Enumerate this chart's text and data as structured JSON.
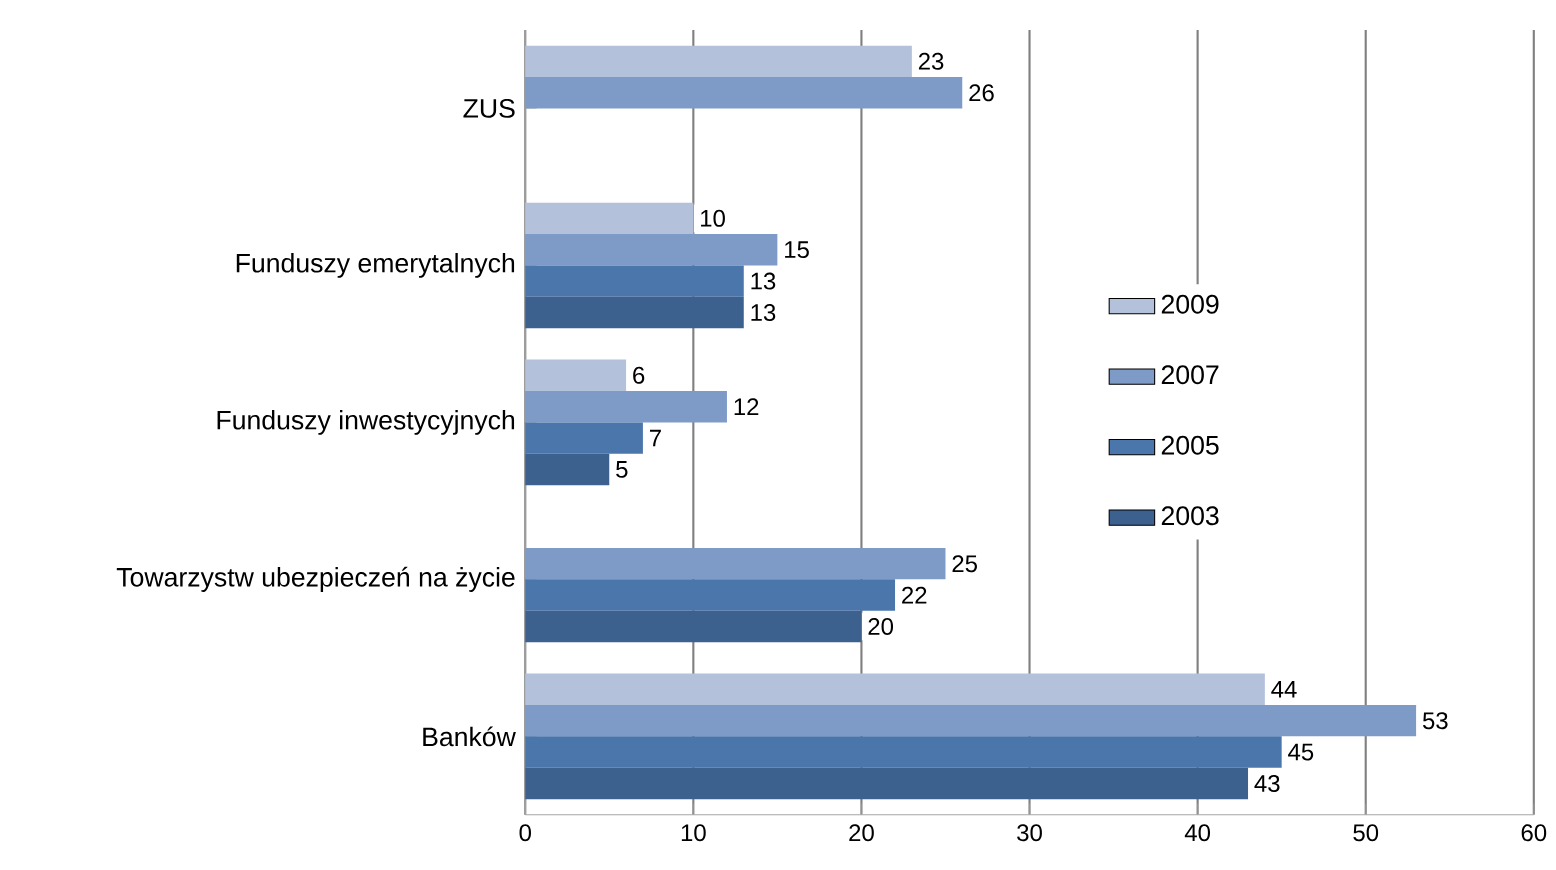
{
  "chart_data": {
    "type": "bar",
    "orientation": "horizontal",
    "categories": [
      "ZUS",
      "Funduszy emerytalnych",
      "Funduszy inwestycyjnych",
      "Towarzystw ubezpieczeń na życie",
      "Banków"
    ],
    "series": [
      {
        "name": "2009",
        "color": "#b4c1db",
        "values": [
          23,
          10,
          6,
          null,
          44
        ]
      },
      {
        "name": "2007",
        "color": "#7e9bc8",
        "values": [
          26,
          15,
          12,
          25,
          53
        ]
      },
      {
        "name": "2005",
        "color": "#4a76ab",
        "values": [
          null,
          13,
          7,
          22,
          45
        ]
      },
      {
        "name": "2003",
        "color": "#3c618e",
        "values": [
          null,
          13,
          5,
          20,
          43
        ]
      }
    ],
    "xlim": [
      0,
      60
    ],
    "xticks": [
      0,
      10,
      20,
      30,
      40,
      50,
      60
    ],
    "grid": "x",
    "legend": "right",
    "data_labels": true
  }
}
